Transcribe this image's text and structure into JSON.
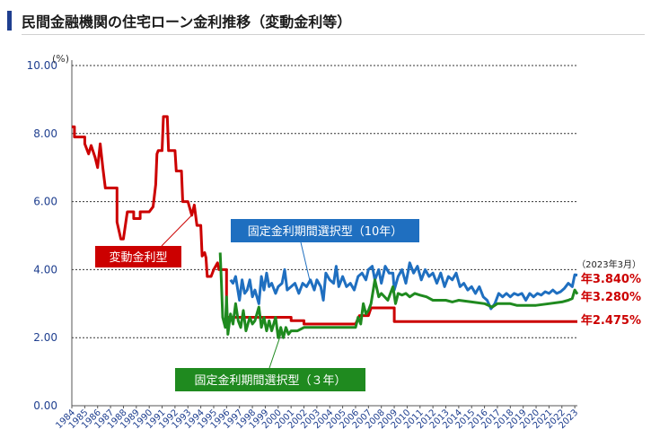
{
  "header": {
    "title": "民間金融機関の住宅ローン金利推移（変動金利等）"
  },
  "colors": {
    "variable": "#cc0000",
    "fixed10": "#1f6fc0",
    "fixed3": "#1f8a1f",
    "axis": "#1f3f8f",
    "title_mark": "#1f3f8f"
  },
  "chart_data": {
    "type": "line",
    "title": "民間金融機関の住宅ローン金利推移（変動金利等）",
    "ylabel": "(%)",
    "ylim": [
      0,
      10
    ],
    "xlim": [
      1984,
      2023.2
    ],
    "y_ticks": [
      "0.00",
      "2.00",
      "4.00",
      "6.00",
      "8.00",
      "10.00"
    ],
    "y_tick_values": [
      0,
      2,
      4,
      6,
      8,
      10
    ],
    "x_tick_labels": [
      "1984",
      "1985",
      "1986",
      "1987",
      "1988",
      "1989",
      "1990",
      "1991",
      "1992",
      "1993",
      "1994",
      "1995",
      "1996",
      "1997",
      "1998",
      "1999",
      "2000",
      "2001",
      "2002",
      "2003",
      "2004",
      "2005",
      "2006",
      "2007",
      "2008",
      "2009",
      "2010",
      "2011",
      "2012",
      "2013",
      "2014",
      "2015",
      "2016",
      "2017",
      "2018",
      "2019",
      "2020",
      "2021",
      "2022",
      "2023"
    ],
    "grid": true,
    "annotation_date": "（2023年3月）",
    "series": [
      {
        "name": "変動金利型",
        "color": "#cc0000",
        "label_latest": "年2.475%",
        "points": [
          [
            1984.0,
            8.2
          ],
          [
            1984.2,
            8.2
          ],
          [
            1984.2,
            7.9
          ],
          [
            1985.0,
            7.9
          ],
          [
            1985.0,
            7.7
          ],
          [
            1985.3,
            7.4
          ],
          [
            1985.5,
            7.65
          ],
          [
            1985.8,
            7.3
          ],
          [
            1986.0,
            7.0
          ],
          [
            1986.2,
            7.7
          ],
          [
            1986.4,
            7.0
          ],
          [
            1986.6,
            6.4
          ],
          [
            1987.5,
            6.4
          ],
          [
            1987.5,
            5.4
          ],
          [
            1987.8,
            4.9
          ],
          [
            1988.0,
            4.9
          ],
          [
            1988.3,
            5.7
          ],
          [
            1988.8,
            5.7
          ],
          [
            1988.8,
            5.5
          ],
          [
            1989.3,
            5.5
          ],
          [
            1989.3,
            5.7
          ],
          [
            1990.0,
            5.7
          ],
          [
            1990.3,
            5.85
          ],
          [
            1990.5,
            6.5
          ],
          [
            1990.6,
            7.4
          ],
          [
            1990.7,
            7.5
          ],
          [
            1991.0,
            7.5
          ],
          [
            1991.1,
            8.5
          ],
          [
            1991.4,
            8.5
          ],
          [
            1991.5,
            7.5
          ],
          [
            1992.0,
            7.5
          ],
          [
            1992.1,
            6.9
          ],
          [
            1992.5,
            6.9
          ],
          [
            1992.6,
            6.0
          ],
          [
            1993.0,
            6.0
          ],
          [
            1993.3,
            5.6
          ],
          [
            1993.5,
            5.9
          ],
          [
            1993.7,
            5.3
          ],
          [
            1994.0,
            5.3
          ],
          [
            1994.1,
            4.4
          ],
          [
            1994.3,
            4.5
          ],
          [
            1994.4,
            4.35
          ],
          [
            1994.5,
            3.8
          ],
          [
            1994.8,
            3.8
          ],
          [
            1995.0,
            4.0
          ],
          [
            1995.3,
            4.2
          ],
          [
            1995.4,
            4.0
          ],
          [
            1996.0,
            4.0
          ],
          [
            1996.0,
            2.6
          ],
          [
            2001.0,
            2.6
          ],
          [
            2001.0,
            2.5
          ],
          [
            2002.0,
            2.5
          ],
          [
            2002.0,
            2.4
          ],
          [
            2006.0,
            2.4
          ],
          [
            2006.3,
            2.65
          ],
          [
            2007.0,
            2.65
          ],
          [
            2007.2,
            2.875
          ],
          [
            2009.0,
            2.875
          ],
          [
            2009.0,
            2.475
          ],
          [
            2023.2,
            2.475
          ]
        ]
      },
      {
        "name": "固定金利期間選択型（10年）",
        "color": "#1f6fc0",
        "label_latest": "年3.840%",
        "points": [
          [
            1996.3,
            3.7
          ],
          [
            1996.5,
            3.6
          ],
          [
            1996.7,
            3.8
          ],
          [
            1997.0,
            3.1
          ],
          [
            1997.2,
            3.7
          ],
          [
            1997.4,
            3.3
          ],
          [
            1997.6,
            3.4
          ],
          [
            1997.8,
            3.7
          ],
          [
            1998.0,
            3.2
          ],
          [
            1998.2,
            3.4
          ],
          [
            1998.5,
            3.0
          ],
          [
            1998.7,
            3.8
          ],
          [
            1998.9,
            3.4
          ],
          [
            1999.1,
            3.9
          ],
          [
            1999.3,
            3.5
          ],
          [
            1999.5,
            3.6
          ],
          [
            1999.8,
            3.3
          ],
          [
            2000.0,
            3.5
          ],
          [
            2000.3,
            3.6
          ],
          [
            2000.5,
            4.0
          ],
          [
            2000.7,
            3.4
          ],
          [
            2001.0,
            3.5
          ],
          [
            2001.3,
            3.6
          ],
          [
            2001.6,
            3.3
          ],
          [
            2001.9,
            3.6
          ],
          [
            2002.2,
            3.5
          ],
          [
            2002.5,
            3.7
          ],
          [
            2002.8,
            3.4
          ],
          [
            2003.0,
            3.7
          ],
          [
            2003.3,
            3.5
          ],
          [
            2003.5,
            3.1
          ],
          [
            2003.7,
            3.9
          ],
          [
            2004.0,
            3.7
          ],
          [
            2004.3,
            3.6
          ],
          [
            2004.5,
            4.1
          ],
          [
            2004.7,
            3.5
          ],
          [
            2005.0,
            3.8
          ],
          [
            2005.3,
            3.5
          ],
          [
            2005.6,
            3.6
          ],
          [
            2005.9,
            3.4
          ],
          [
            2006.2,
            3.8
          ],
          [
            2006.5,
            3.9
          ],
          [
            2006.8,
            3.7
          ],
          [
            2007.0,
            4.0
          ],
          [
            2007.3,
            4.1
          ],
          [
            2007.5,
            3.7
          ],
          [
            2007.8,
            4.0
          ],
          [
            2008.0,
            3.6
          ],
          [
            2008.3,
            4.1
          ],
          [
            2008.6,
            3.9
          ],
          [
            2008.9,
            3.9
          ],
          [
            2009.0,
            3.4
          ],
          [
            2009.3,
            3.8
          ],
          [
            2009.6,
            4.0
          ],
          [
            2009.9,
            3.6
          ],
          [
            2010.2,
            4.2
          ],
          [
            2010.5,
            3.9
          ],
          [
            2010.8,
            4.1
          ],
          [
            2011.1,
            3.7
          ],
          [
            2011.4,
            4.0
          ],
          [
            2011.7,
            3.8
          ],
          [
            2012.0,
            3.9
          ],
          [
            2012.3,
            3.6
          ],
          [
            2012.6,
            3.9
          ],
          [
            2012.9,
            3.5
          ],
          [
            2013.2,
            3.8
          ],
          [
            2013.5,
            3.7
          ],
          [
            2013.8,
            3.9
          ],
          [
            2014.1,
            3.5
          ],
          [
            2014.4,
            3.6
          ],
          [
            2014.7,
            3.4
          ],
          [
            2015.0,
            3.5
          ],
          [
            2015.3,
            3.3
          ],
          [
            2015.6,
            3.5
          ],
          [
            2015.9,
            3.2
          ],
          [
            2016.2,
            3.1
          ],
          [
            2016.5,
            2.85
          ],
          [
            2016.8,
            3.0
          ],
          [
            2017.1,
            3.3
          ],
          [
            2017.4,
            3.2
          ],
          [
            2017.7,
            3.3
          ],
          [
            2018.0,
            3.2
          ],
          [
            2018.3,
            3.3
          ],
          [
            2018.6,
            3.25
          ],
          [
            2018.9,
            3.3
          ],
          [
            2019.2,
            3.1
          ],
          [
            2019.5,
            3.3
          ],
          [
            2019.8,
            3.2
          ],
          [
            2020.1,
            3.3
          ],
          [
            2020.4,
            3.25
          ],
          [
            2020.7,
            3.35
          ],
          [
            2021.0,
            3.3
          ],
          [
            2021.3,
            3.4
          ],
          [
            2021.6,
            3.3
          ],
          [
            2021.9,
            3.35
          ],
          [
            2022.2,
            3.45
          ],
          [
            2022.5,
            3.6
          ],
          [
            2022.8,
            3.5
          ],
          [
            2023.0,
            3.85
          ],
          [
            2023.2,
            3.84
          ]
        ]
      },
      {
        "name": "固定金利期間選択型（3年）",
        "color": "#1f8a1f",
        "label_latest": "年3.280%",
        "points": [
          [
            1995.5,
            4.5
          ],
          [
            1995.6,
            3.6
          ],
          [
            1995.7,
            2.6
          ],
          [
            1995.9,
            2.3
          ],
          [
            1996.0,
            3.2
          ],
          [
            1996.1,
            2.1
          ],
          [
            1996.3,
            2.7
          ],
          [
            1996.5,
            2.4
          ],
          [
            1996.7,
            3.0
          ],
          [
            1996.9,
            2.5
          ],
          [
            1997.1,
            2.3
          ],
          [
            1997.3,
            2.8
          ],
          [
            1997.5,
            2.2
          ],
          [
            1997.8,
            2.6
          ],
          [
            1998.0,
            2.4
          ],
          [
            1998.2,
            2.5
          ],
          [
            1998.5,
            2.9
          ],
          [
            1998.7,
            2.3
          ],
          [
            1998.9,
            2.6
          ],
          [
            1999.1,
            2.2
          ],
          [
            1999.3,
            2.5
          ],
          [
            1999.5,
            2.2
          ],
          [
            1999.8,
            2.6
          ],
          [
            2000.0,
            2.0
          ],
          [
            2000.2,
            2.3
          ],
          [
            2000.4,
            2.0
          ],
          [
            2000.6,
            2.3
          ],
          [
            2000.8,
            2.1
          ],
          [
            2001.0,
            2.2
          ],
          [
            2001.5,
            2.2
          ],
          [
            2002.0,
            2.3
          ],
          [
            2006.0,
            2.3
          ],
          [
            2006.2,
            2.6
          ],
          [
            2006.4,
            2.4
          ],
          [
            2006.6,
            3.0
          ],
          [
            2006.8,
            2.7
          ],
          [
            2007.0,
            2.8
          ],
          [
            2007.2,
            3.0
          ],
          [
            2007.5,
            3.7
          ],
          [
            2007.8,
            3.2
          ],
          [
            2008.0,
            3.3
          ],
          [
            2008.5,
            3.1
          ],
          [
            2008.9,
            3.5
          ],
          [
            2009.1,
            3.0
          ],
          [
            2009.3,
            3.3
          ],
          [
            2009.6,
            3.25
          ],
          [
            2009.9,
            3.3
          ],
          [
            2010.2,
            3.2
          ],
          [
            2010.6,
            3.3
          ],
          [
            2011.0,
            3.25
          ],
          [
            2011.5,
            3.2
          ],
          [
            2012.0,
            3.1
          ],
          [
            2013.0,
            3.1
          ],
          [
            2013.5,
            3.05
          ],
          [
            2014.0,
            3.1
          ],
          [
            2015.0,
            3.05
          ],
          [
            2016.0,
            3.0
          ],
          [
            2016.6,
            2.9
          ],
          [
            2017.0,
            3.0
          ],
          [
            2018.0,
            3.0
          ],
          [
            2018.5,
            2.95
          ],
          [
            2019.0,
            2.95
          ],
          [
            2020.0,
            2.95
          ],
          [
            2021.0,
            3.0
          ],
          [
            2022.0,
            3.05
          ],
          [
            2022.5,
            3.1
          ],
          [
            2022.8,
            3.15
          ],
          [
            2023.0,
            3.4
          ],
          [
            2023.2,
            3.28
          ]
        ]
      }
    ],
    "callouts": [
      {
        "text": "変動金利型",
        "series": 0
      },
      {
        "text": "固定金利期間選択型（10年）",
        "series": 1
      },
      {
        "text": "固定金利期間選択型（３年）",
        "series": 2
      }
    ]
  }
}
